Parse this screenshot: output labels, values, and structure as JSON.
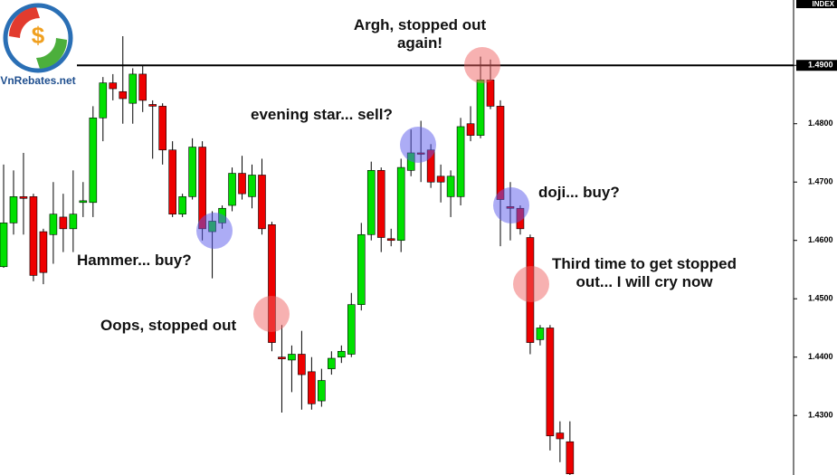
{
  "chart_data": {
    "type": "candlestick",
    "logo_text": "VnRebates.net",
    "axis_label": "INDEX",
    "up_color": "#00e000",
    "down_color": "#ee0000",
    "ylim": [
      1.4198,
      1.5012
    ],
    "yticks": [
      {
        "value": 1.43,
        "label": "1.4300"
      },
      {
        "value": 1.44,
        "label": "1.4400"
      },
      {
        "value": 1.45,
        "label": "1.4500"
      },
      {
        "value": 1.46,
        "label": "1.4600"
      },
      {
        "value": 1.47,
        "label": "1.4700"
      },
      {
        "value": 1.48,
        "label": "1.4800"
      },
      {
        "value": 1.49,
        "label": "1.4900"
      }
    ],
    "resistance": 1.49,
    "open": [
      1.4555,
      1.463,
      1.4675,
      1.4675,
      1.4615,
      1.461,
      1.464,
      1.462,
      1.4665,
      1.4665,
      1.481,
      1.487,
      1.4855,
      1.4835,
      1.4885,
      1.4833,
      1.483,
      1.4755,
      1.4645,
      1.4675,
      1.476,
      1.4615,
      1.463,
      1.466,
      1.4715,
      1.4675,
      1.4712,
      1.4627,
      1.44,
      1.4395,
      1.4405,
      1.4375,
      1.4325,
      1.438,
      1.44,
      1.4405,
      1.449,
      1.461,
      1.472,
      1.4603,
      1.46,
      1.472,
      1.475,
      1.4755,
      1.471,
      1.4675,
      1.4675,
      1.48,
      1.478,
      1.4875,
      1.483,
      1.4658,
      1.4655,
      1.4605,
      1.443,
      1.445,
      1.427,
      1.4255
    ],
    "high": [
      1.473,
      1.472,
      1.475,
      1.468,
      1.462,
      1.47,
      1.468,
      1.472,
      1.47,
      1.483,
      1.488,
      1.4885,
      1.495,
      1.4895,
      1.49,
      1.484,
      1.4835,
      1.477,
      1.468,
      1.4775,
      1.477,
      1.465,
      1.466,
      1.4725,
      1.4745,
      1.473,
      1.474,
      1.4632,
      1.4455,
      1.442,
      1.4445,
      1.44,
      1.438,
      1.441,
      1.442,
      1.451,
      1.463,
      1.4735,
      1.4725,
      1.462,
      1.474,
      1.479,
      1.4805,
      1.4765,
      1.473,
      1.472,
      1.481,
      1.483,
      1.4915,
      1.491,
      1.484,
      1.47,
      1.466,
      1.461,
      1.4455,
      1.4455,
      1.429,
      1.429
    ],
    "low": [
      1.4553,
      1.461,
      1.461,
      1.453,
      1.4525,
      1.456,
      1.458,
      1.458,
      1.464,
      1.464,
      1.477,
      1.484,
      1.48,
      1.48,
      1.482,
      1.474,
      1.473,
      1.464,
      1.464,
      1.467,
      1.46,
      1.4535,
      1.462,
      1.465,
      1.467,
      1.4655,
      1.461,
      1.441,
      1.4305,
      1.434,
      1.431,
      1.431,
      1.4315,
      1.437,
      1.439,
      1.44,
      1.448,
      1.46,
      1.458,
      1.459,
      1.458,
      1.471,
      1.47,
      1.469,
      1.4665,
      1.464,
      1.466,
      1.477,
      1.4775,
      1.4825,
      1.459,
      1.46,
      1.461,
      1.4405,
      1.442,
      1.424,
      1.422,
      1.4198
    ],
    "close": [
      1.463,
      1.4675,
      1.4672,
      1.454,
      1.4545,
      1.4645,
      1.462,
      1.4645,
      1.4668,
      1.481,
      1.487,
      1.486,
      1.4843,
      1.4885,
      1.484,
      1.483,
      1.4755,
      1.4645,
      1.4675,
      1.476,
      1.462,
      1.4633,
      1.4655,
      1.4715,
      1.468,
      1.4712,
      1.462,
      1.4425,
      1.4397,
      1.4405,
      1.437,
      1.432,
      1.436,
      1.4398,
      1.441,
      1.449,
      1.461,
      1.472,
      1.4605,
      1.46,
      1.4725,
      1.475,
      1.4748,
      1.47,
      1.47,
      1.471,
      1.4795,
      1.478,
      1.4875,
      1.483,
      1.467,
      1.4655,
      1.462,
      1.4425,
      1.445,
      1.4265,
      1.426,
      1.42
    ],
    "annotations": [
      "Argh, stopped out again!",
      "evening star... sell?",
      "doji... buy?",
      "Hammer... buy?",
      "Oops, stopped out",
      "Third time to get stopped out... I will cry now"
    ]
  }
}
